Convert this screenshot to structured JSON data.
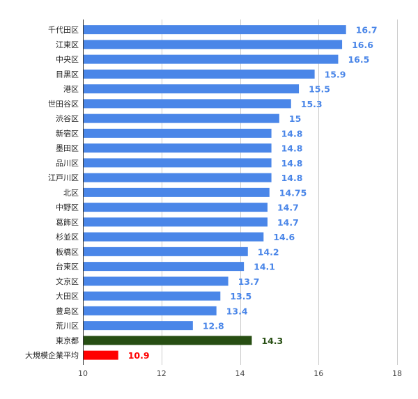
{
  "chart_data": {
    "type": "bar",
    "orientation": "horizontal",
    "title": "",
    "xlabel": "",
    "ylabel": "",
    "xlim": [
      10,
      18
    ],
    "ticks": [
      10,
      12,
      14,
      16,
      18
    ],
    "grid": true,
    "legend": "none",
    "categories": [
      "千代田区",
      "江東区",
      "中央区",
      "目黒区",
      "港区",
      "世田谷区",
      "渋谷区",
      "新宿区",
      "墨田区",
      "品川区",
      "江戸川区",
      "北区",
      "中野区",
      "葛飾区",
      "杉並区",
      "板橋区",
      "台東区",
      "文京区",
      "大田区",
      "豊島区",
      "荒川区",
      "東京都",
      "大規模企業平均"
    ],
    "values": [
      16.7,
      16.6,
      16.5,
      15.9,
      15.5,
      15.3,
      15,
      14.8,
      14.8,
      14.8,
      14.8,
      14.75,
      14.7,
      14.7,
      14.6,
      14.2,
      14.1,
      13.7,
      13.5,
      13.4,
      12.8,
      14.3,
      10.9
    ],
    "value_labels": [
      "16.7",
      "16.6",
      "16.5",
      "15.9",
      "15.5",
      "15.3",
      "15",
      "14.8",
      "14.8",
      "14.8",
      "14.8",
      "14.75",
      "14.7",
      "14.7",
      "14.6",
      "14.2",
      "14.1",
      "13.7",
      "13.5",
      "13.4",
      "12.8",
      "14.3",
      "10.9"
    ],
    "bar_colors": [
      "#4a86e8",
      "#4a86e8",
      "#4a86e8",
      "#4a86e8",
      "#4a86e8",
      "#4a86e8",
      "#4a86e8",
      "#4a86e8",
      "#4a86e8",
      "#4a86e8",
      "#4a86e8",
      "#4a86e8",
      "#4a86e8",
      "#4a86e8",
      "#4a86e8",
      "#4a86e8",
      "#4a86e8",
      "#4a86e8",
      "#4a86e8",
      "#4a86e8",
      "#4a86e8",
      "#274e13",
      "#ff0000"
    ],
    "label_colors": [
      "#4a86e8",
      "#4a86e8",
      "#4a86e8",
      "#4a86e8",
      "#4a86e8",
      "#4a86e8",
      "#4a86e8",
      "#4a86e8",
      "#4a86e8",
      "#4a86e8",
      "#4a86e8",
      "#4a86e8",
      "#4a86e8",
      "#4a86e8",
      "#4a86e8",
      "#4a86e8",
      "#4a86e8",
      "#4a86e8",
      "#4a86e8",
      "#4a86e8",
      "#4a86e8",
      "#274e13",
      "#ff0000"
    ]
  }
}
